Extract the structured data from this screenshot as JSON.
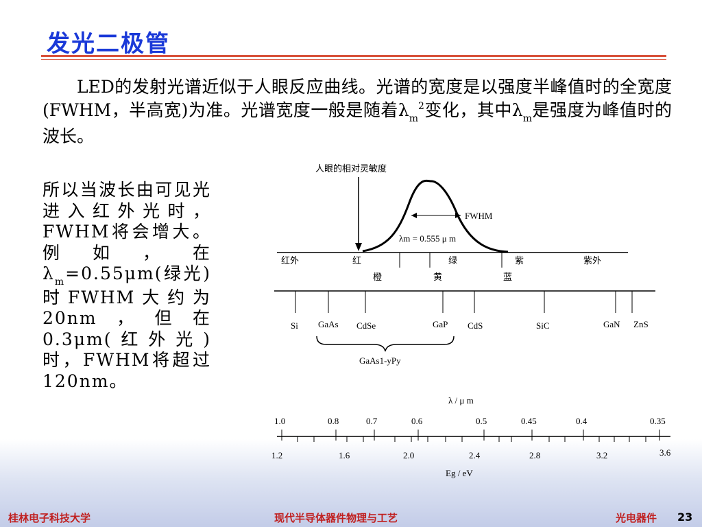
{
  "title": "发光二极管",
  "intro": {
    "part1": "LED的发射光谱近似于人眼反应曲线。光谱的宽度是以强度半峰值时的全宽度(FWHM，半高宽)为准。光谱宽度一般是随着",
    "lambda": "λ",
    "sub_m": "m",
    "sup_2": "2",
    "part2": "变化，其中",
    "part3": "是强度为峰值时的波长。"
  },
  "side": {
    "part1": "所以当波长由可见光进入红外光时，FWHM将会增大。例如，在",
    "lambda": "λ",
    "sub_m": "m",
    "part2": "=0.55μm(绿光)时FWHM大约为20nm，但在0.3μm(红外光)时，FWHM将超过120nm。"
  },
  "diagram": {
    "eye_label": "人眼的相对灵敏度",
    "fwhm_label": "FWHM",
    "lambda_m_label": "λm = 0.555 μ m",
    "bands_top": [
      "红外",
      "红",
      "绿",
      "紫",
      "紫外"
    ],
    "bands_bottom": [
      "橙",
      "黄",
      "蓝"
    ],
    "materials": [
      "Si",
      "GaAs",
      "CdSe",
      "GaP",
      "CdS",
      "SiC",
      "GaN",
      "ZnS"
    ],
    "alloy_label": "GaAs1-yPy",
    "wavelength_axis_label": "λ / μ m",
    "wavelength_ticks": [
      "1.0",
      "0.8",
      "0.7",
      "0.6",
      "0.5",
      "0.45",
      "0.4",
      "0.35"
    ],
    "energy_ticks": [
      "1.2",
      "1.6",
      "2.0",
      "2.4",
      "2.8",
      "3.2",
      "3.6"
    ],
    "energy_axis_label": "Eg / eV"
  },
  "footer": {
    "left": "桂林电子科技大学",
    "center": "现代半导体器件物理与工艺",
    "right": "光电器件",
    "page": "23"
  },
  "colors": {
    "title": "#1a39d8",
    "accent_rule": "#d8513a",
    "footer_text": "#c02020"
  }
}
